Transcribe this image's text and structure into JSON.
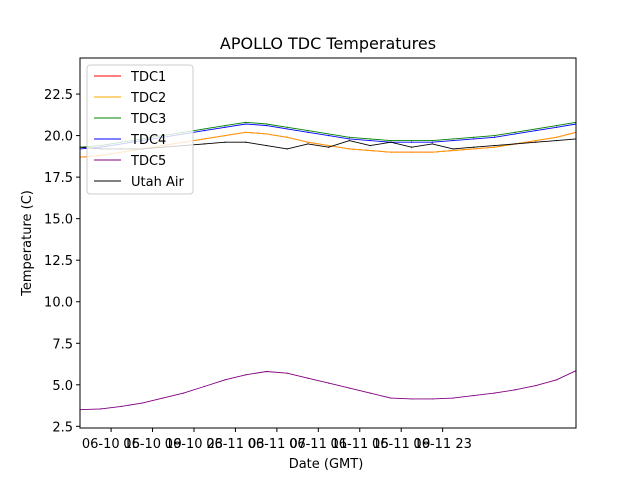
{
  "chart_data": {
    "type": "line",
    "title": "APOLLO TDC Temperatures",
    "xlabel": "Date (GMT)",
    "ylabel": "Temperature (C)",
    "x_unit": "hours since 06-10 12:00 GMT",
    "xlim": [
      0,
      47.87
    ],
    "ylim": [
      2.4,
      24.67
    ],
    "x_ticks": [
      {
        "x": 3,
        "label": "06-10 15"
      },
      {
        "x": 7,
        "label": "06-10 19"
      },
      {
        "x": 11,
        "label": "06-10 23"
      },
      {
        "x": 15,
        "label": "06-11 03"
      },
      {
        "x": 19,
        "label": "06-11 07"
      },
      {
        "x": 23,
        "label": "06-11 11"
      },
      {
        "x": 27,
        "label": "06-11 15"
      },
      {
        "x": 31,
        "label": "06-11 19"
      },
      {
        "x": 35,
        "label": "06-11 23"
      }
    ],
    "y_ticks": [
      {
        "y": 2.5,
        "label": "2.5"
      },
      {
        "y": 5.0,
        "label": "5.0"
      },
      {
        "y": 7.5,
        "label": "7.5"
      },
      {
        "y": 10.0,
        "label": "10.0"
      },
      {
        "y": 12.5,
        "label": "12.5"
      },
      {
        "y": 15.0,
        "label": "15.0"
      },
      {
        "y": 17.5,
        "label": "17.5"
      },
      {
        "y": 20.0,
        "label": "20.0"
      },
      {
        "y": 22.5,
        "label": "22.5"
      }
    ],
    "legend_position": "top-left",
    "grid": false,
    "x": [
      0,
      2,
      4,
      6,
      8,
      10,
      12,
      14,
      16,
      18,
      20,
      22,
      24,
      26,
      28,
      30,
      32,
      34,
      36,
      38,
      40,
      42,
      44,
      46,
      47.87
    ],
    "series": [
      {
        "name": "TDC1",
        "color": "#ff0000",
        "values": [
          18.7,
          18.8,
          19.0,
          19.2,
          19.4,
          19.6,
          19.8,
          20.0,
          20.2,
          20.1,
          19.9,
          19.6,
          19.4,
          19.2,
          19.1,
          19.0,
          19.0,
          19.0,
          19.1,
          19.2,
          19.3,
          19.5,
          19.7,
          19.9,
          20.2
        ]
      },
      {
        "name": "TDC2",
        "color": "#ffa500",
        "values": [
          18.7,
          18.8,
          19.0,
          19.2,
          19.4,
          19.6,
          19.8,
          20.0,
          20.2,
          20.1,
          19.9,
          19.6,
          19.4,
          19.2,
          19.1,
          19.0,
          19.0,
          19.0,
          19.1,
          19.2,
          19.3,
          19.5,
          19.7,
          19.9,
          20.2
        ]
      },
      {
        "name": "TDC3",
        "color": "#008000",
        "values": [
          19.3,
          19.4,
          19.6,
          19.8,
          20.0,
          20.2,
          20.4,
          20.6,
          20.8,
          20.7,
          20.5,
          20.3,
          20.1,
          19.9,
          19.8,
          19.7,
          19.7,
          19.7,
          19.8,
          19.9,
          20.0,
          20.2,
          20.4,
          20.6,
          20.8
        ]
      },
      {
        "name": "TDC4",
        "color": "#0000ff",
        "values": [
          19.2,
          19.3,
          19.5,
          19.7,
          19.9,
          20.1,
          20.3,
          20.5,
          20.7,
          20.6,
          20.4,
          20.2,
          20.0,
          19.8,
          19.7,
          19.6,
          19.6,
          19.6,
          19.7,
          19.8,
          19.9,
          20.1,
          20.3,
          20.5,
          20.7
        ]
      },
      {
        "name": "TDC5",
        "color": "#800080",
        "values": [
          3.5,
          3.55,
          3.7,
          3.9,
          4.2,
          4.5,
          4.9,
          5.3,
          5.6,
          5.8,
          5.7,
          5.4,
          5.1,
          4.8,
          4.5,
          4.2,
          4.15,
          4.15,
          4.2,
          4.35,
          4.5,
          4.7,
          4.95,
          5.3,
          5.85
        ]
      },
      {
        "name": "Utah Air",
        "color": "#000000",
        "values": [
          19.3,
          19.2,
          19.2,
          19.2,
          19.3,
          19.4,
          19.5,
          19.6,
          19.6,
          19.4,
          19.2,
          19.5,
          19.3,
          19.7,
          19.4,
          19.6,
          19.3,
          19.5,
          19.2,
          19.3,
          19.4,
          19.5,
          19.6,
          19.7,
          19.8
        ]
      }
    ]
  }
}
